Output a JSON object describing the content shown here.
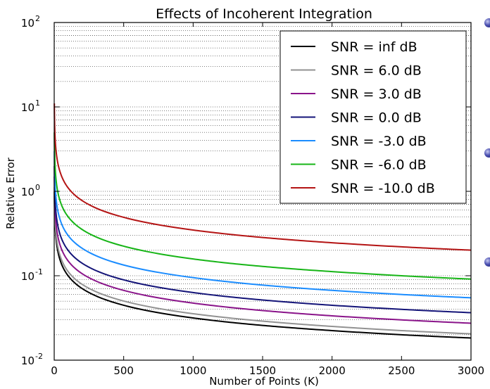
{
  "chart_data": {
    "type": "line",
    "title": "Effects of Incoherent Integration",
    "xlabel": "Number of Points (K)",
    "ylabel": "Relative Error",
    "xlim": [
      0,
      3000
    ],
    "ylim": [
      0.01,
      100
    ],
    "yscale": "log",
    "grid": "horizontal dotted (major and minor)",
    "legend_position": "top-right",
    "x_ticks": [
      0,
      500,
      1000,
      1500,
      2000,
      2500,
      3000
    ],
    "y_ticks": [
      {
        "value": 0.01,
        "base": "10",
        "exp": "-2"
      },
      {
        "value": 0.1,
        "base": "10",
        "exp": "-1"
      },
      {
        "value": 1,
        "base": "10",
        "exp": "0"
      },
      {
        "value": 10,
        "base": "10",
        "exp": "1"
      },
      {
        "value": 100,
        "base": "10",
        "exp": "2"
      }
    ],
    "series": [
      {
        "name": "SNR = inf dB",
        "color": "#000000",
        "x": [
          1,
          10,
          50,
          100,
          200,
          500,
          1000,
          1500,
          2000,
          2500,
          3000
        ],
        "y": [
          1.0,
          0.316,
          0.141,
          0.1,
          0.0707,
          0.0447,
          0.0316,
          0.0258,
          0.0224,
          0.02,
          0.0183
        ]
      },
      {
        "name": "SNR = 6.0 dB",
        "color": "#929292",
        "x": [
          1,
          10,
          50,
          100,
          200,
          500,
          1000,
          1500,
          2000,
          2500,
          3000
        ],
        "y": [
          1.12,
          0.355,
          0.159,
          0.112,
          0.0793,
          0.0502,
          0.0355,
          0.029,
          0.0251,
          0.0224,
          0.0205
        ]
      },
      {
        "name": "SNR = 3.0 dB",
        "color": "#8a148a",
        "x": [
          1,
          10,
          50,
          100,
          200,
          500,
          1000,
          1500,
          2000,
          2500,
          3000
        ],
        "y": [
          1.5,
          0.474,
          0.212,
          0.15,
          0.106,
          0.0671,
          0.0474,
          0.0387,
          0.0335,
          0.03,
          0.0274
        ]
      },
      {
        "name": "SNR = 0.0 dB",
        "color": "#141478",
        "x": [
          1,
          10,
          50,
          100,
          200,
          500,
          1000,
          1500,
          2000,
          2500,
          3000
        ],
        "y": [
          2.0,
          0.632,
          0.283,
          0.2,
          0.141,
          0.0894,
          0.0632,
          0.0516,
          0.0447,
          0.04,
          0.0365
        ]
      },
      {
        "name": "SNR = -3.0 dB",
        "color": "#1a8cff",
        "x": [
          1,
          10,
          50,
          100,
          200,
          500,
          1000,
          1500,
          2000,
          2500,
          3000
        ],
        "y": [
          3.0,
          0.95,
          0.425,
          0.3,
          0.212,
          0.134,
          0.095,
          0.0775,
          0.0671,
          0.06,
          0.0548
        ]
      },
      {
        "name": "SNR = -6.0 dB",
        "color": "#17b517",
        "x": [
          1,
          10,
          50,
          100,
          200,
          500,
          1000,
          1500,
          2000,
          2500,
          3000
        ],
        "y": [
          5.0,
          1.58,
          0.707,
          0.5,
          0.354,
          0.224,
          0.158,
          0.129,
          0.112,
          0.1,
          0.0913
        ]
      },
      {
        "name": "SNR = -10.0 dB",
        "color": "#b41414",
        "x": [
          1,
          10,
          50,
          100,
          200,
          500,
          1000,
          1500,
          2000,
          2500,
          3000
        ],
        "y": [
          11.0,
          3.48,
          1.56,
          1.1,
          0.778,
          0.492,
          0.348,
          0.284,
          0.246,
          0.22,
          0.201
        ]
      }
    ]
  }
}
